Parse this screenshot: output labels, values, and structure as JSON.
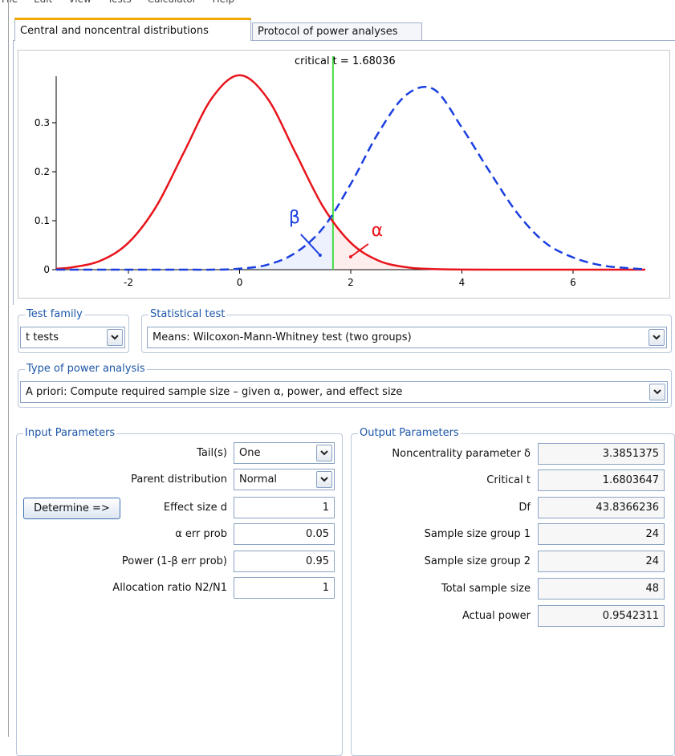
{
  "menu": [
    "File",
    "Edit",
    "View",
    "Tests",
    "Calculator",
    "Help"
  ],
  "tabs": [
    "Central and noncentral distributions",
    "Protocol of power analyses"
  ],
  "chart_data": {
    "type": "line",
    "annotation": "critical t = 1.68036",
    "critical_t": 1.68036,
    "critical_color": "#44dd44",
    "x": [
      -3.3,
      -3,
      -2.5,
      -2,
      -1.5,
      -1,
      -0.5,
      0,
      0.5,
      1,
      1.5,
      2,
      2.5,
      3,
      3.5,
      4,
      4.5,
      5,
      5.5,
      6,
      6.5,
      7,
      7.3
    ],
    "series": [
      {
        "color": "#e8141c",
        "dashed": false,
        "values": [
          0.002,
          0.005,
          0.0185,
          0.055,
          0.129,
          0.24,
          0.35,
          0.397,
          0.35,
          0.24,
          0.129,
          0.055,
          0.0185,
          0.005,
          0.0012,
          0.0003,
          0,
          0,
          0,
          0,
          0,
          0,
          0
        ]
      },
      {
        "color": "#1a3fe0",
        "dashed": true,
        "values": [
          0,
          0,
          0,
          0,
          0,
          0,
          0,
          0.002,
          0.01,
          0.034,
          0.085,
          0.175,
          0.28,
          0.357,
          0.368,
          0.29,
          0.2,
          0.115,
          0.055,
          0.025,
          0.009,
          0.003,
          0.001
        ]
      }
    ],
    "annotations": [
      {
        "text": "β",
        "color": "#1a3fe0"
      },
      {
        "text": "α",
        "color": "#e8141c"
      }
    ],
    "xlim": [
      -3.3,
      7.3
    ],
    "ylim": [
      0,
      0.395
    ],
    "xticks": [
      -2,
      0,
      2,
      4,
      6
    ],
    "yticks": [
      0,
      0.1,
      0.2,
      0.3
    ]
  },
  "test_family": {
    "label": "Test family",
    "value": "t tests"
  },
  "statistical_test": {
    "label": "Statistical test",
    "value": "Means: Wilcoxon-Mann-Whitney test (two groups)"
  },
  "power_analysis": {
    "label": "Type of power analysis",
    "value": "A priori: Compute required sample size – given α, power, and effect size"
  },
  "input": {
    "label": "Input Parameters",
    "button": "Determine =>",
    "fields": [
      {
        "label": "Tail(s)",
        "value": "One",
        "dropdown": true
      },
      {
        "label": "Parent distribution",
        "value": "Normal",
        "dropdown": true
      },
      {
        "label": "Effect size d",
        "value": 1,
        "dropdown": false
      },
      {
        "label": "α err prob",
        "value": 0.05,
        "dropdown": false
      },
      {
        "label": "Power (1-β err prob)",
        "value": 0.95,
        "dropdown": false
      },
      {
        "label": "Allocation ratio N2/N1",
        "value": 1,
        "dropdown": false
      }
    ]
  },
  "output": {
    "label": "Output Parameters",
    "fields": [
      {
        "label": "Noncentrality parameter δ",
        "value": 3.3851375
      },
      {
        "label": "Critical t",
        "value": 1.6803647
      },
      {
        "label": "Df",
        "value": 43.8366236
      },
      {
        "label": "Sample size group 1",
        "value": 24
      },
      {
        "label": "Sample size group 2",
        "value": 24
      },
      {
        "label": "Total sample size",
        "value": 48
      },
      {
        "label": "Actual power",
        "value": 0.9542311
      }
    ]
  }
}
